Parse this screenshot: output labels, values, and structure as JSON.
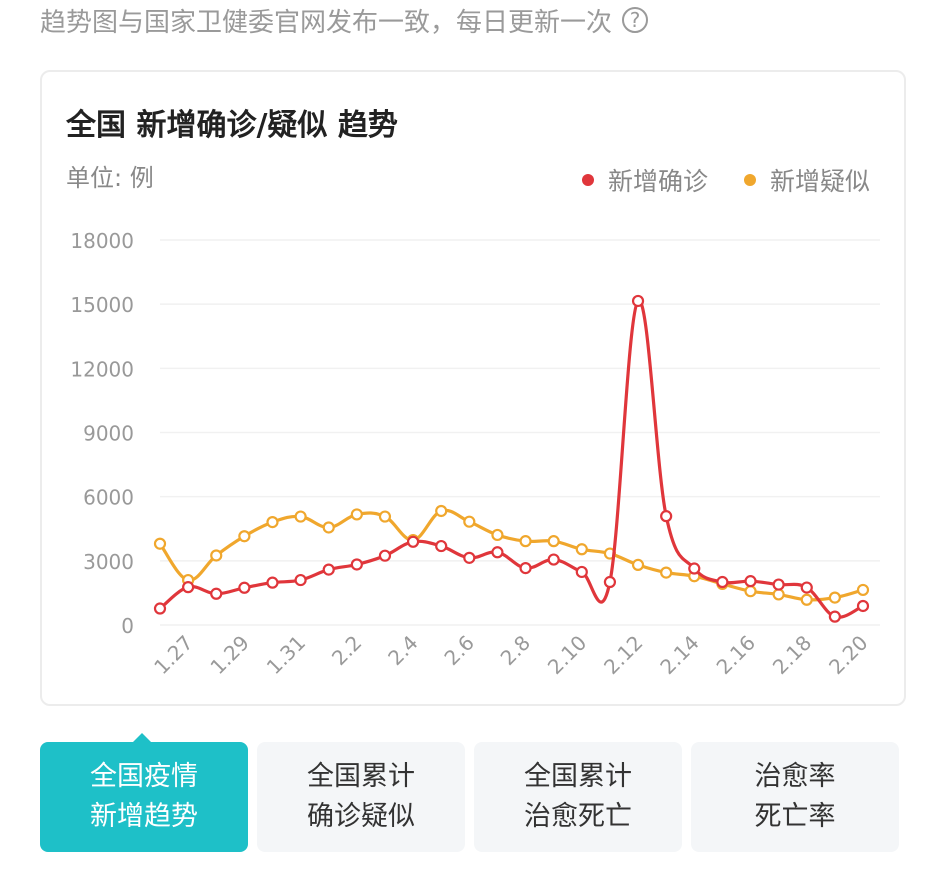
{
  "note": {
    "text": "趋势图与国家卫健委官网发布一致，每日更新一次",
    "help_icon": "question-circle-icon"
  },
  "card": {
    "title": "全国 新增确诊/疑似 趋势",
    "unit": "单位: 例",
    "legend": [
      {
        "label": "新增确诊",
        "color": "#e0363b"
      },
      {
        "label": "新增疑似",
        "color": "#f0a72d"
      }
    ]
  },
  "chart_data": {
    "type": "line",
    "x": [
      "1.26",
      "1.27",
      "1.28",
      "1.29",
      "1.30",
      "1.31",
      "2.1",
      "2.2",
      "2.3",
      "2.4",
      "2.5",
      "2.6",
      "2.7",
      "2.8",
      "2.9",
      "2.10",
      "2.11",
      "2.12",
      "2.13",
      "2.14",
      "2.15",
      "2.16",
      "2.17",
      "2.18",
      "2.19",
      "2.20"
    ],
    "x_tick_labels": [
      "1.27",
      "1.29",
      "1.31",
      "2.2",
      "2.4",
      "2.6",
      "2.8",
      "2.10",
      "2.12",
      "2.14",
      "2.16",
      "2.18",
      "2.20"
    ],
    "y_ticks": [
      0,
      3000,
      6000,
      9000,
      12000,
      15000,
      18000
    ],
    "ylim": [
      0,
      18000
    ],
    "series": [
      {
        "name": "新增确诊",
        "color": "#e0363b",
        "values": [
          770,
          1770,
          1460,
          1740,
          1980,
          2100,
          2590,
          2830,
          3240,
          3890,
          3690,
          3140,
          3400,
          2660,
          3060,
          2480,
          2010,
          15150,
          5090,
          2640,
          2010,
          2050,
          1890,
          1750,
          390,
          890
        ]
      },
      {
        "name": "新增疑似",
        "color": "#f0a72d",
        "values": [
          3800,
          2100,
          3250,
          4150,
          4810,
          5070,
          4560,
          5170,
          5070,
          3970,
          5330,
          4830,
          4210,
          3920,
          3920,
          3540,
          3340,
          2810,
          2450,
          2280,
          1920,
          1580,
          1430,
          1180,
          1280,
          1640
        ]
      }
    ],
    "grid": true
  },
  "tabs": [
    {
      "line1": "全国疫情",
      "line2": "新增趋势",
      "active": true
    },
    {
      "line1": "全国累计",
      "line2": "确诊疑似",
      "active": false
    },
    {
      "line1": "全国累计",
      "line2": "治愈死亡",
      "active": false
    },
    {
      "line1": "治愈率",
      "line2": "死亡率",
      "active": false
    }
  ]
}
